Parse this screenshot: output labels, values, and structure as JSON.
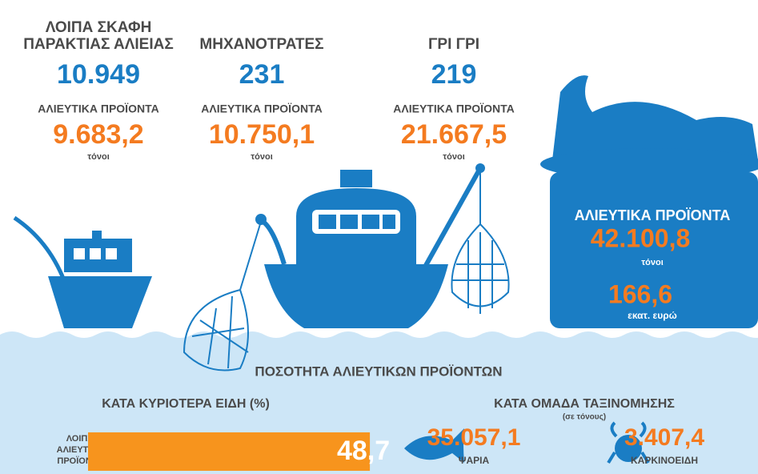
{
  "fleets": [
    {
      "title": [
        "ΛΟΙΠΑ ΣΚΑΦΗ",
        "ΠΑΡΑΚΤΙΑΣ ΑΛΙΕΙΑΣ"
      ],
      "count": "10.949",
      "products_label": "ΑΛΙΕΥΤΙΚΑ ΠΡΟΪΟΝΤΑ",
      "products": "9.683,2",
      "unit": "τόνοι"
    },
    {
      "title": [
        "ΜΗΧΑΝΟΤΡΑΤΕΣ"
      ],
      "count": "231",
      "products_label": "ΑΛΙΕΥΤΙΚΑ ΠΡΟΪΟΝΤΑ",
      "products": "10.750,1",
      "unit": "τόνοι"
    },
    {
      "title": [
        "ΓΡΙ ΓΡΙ"
      ],
      "count": "219",
      "products_label": "ΑΛΙΕΥΤΙΚΑ ΠΡΟΪΟΝΤΑ",
      "products": "21.667,5",
      "unit": "τόνοι"
    }
  ],
  "total": {
    "label": "ΑΛΙΕΥΤΙΚΑ ΠΡΟΪΟΝΤΑ",
    "quantity": "42.100,8",
    "quantity_unit": "τόνοι",
    "value": "166,6",
    "value_unit": "εκατ. ευρώ"
  },
  "section": {
    "title": "ΠΟΣΟΤΗΤΑ ΑΛΙΕΥΤΙΚΩΝ ΠΡΟΪΟΝΤΩΝ",
    "by_species": {
      "title": "ΚΑΤΑ ΚΥΡΙΟΤΕΡΑ ΕΙΔΗ (%)",
      "bars": [
        {
          "label": [
            "ΛΟΙΠΑ",
            "ΑΛΙΕΥΤΙΚΑ",
            "ΠΡΟΪΟΝΤΑ"
          ],
          "value": 48.7,
          "value_label": "48,7"
        }
      ]
    },
    "by_group": {
      "title": "ΚΑΤΑ ΟΜΑΔΑ ΤΑΞΙΝΟΜΗΣΗΣ",
      "subtitle": "(σε τόνους)",
      "groups": [
        {
          "value": "35.057,1",
          "label": "ΨΑΡΙΑ"
        },
        {
          "value": "3.407,4",
          "label": "ΚΑΡΚΙΝΟΕΙΔΗ"
        }
      ]
    }
  }
}
